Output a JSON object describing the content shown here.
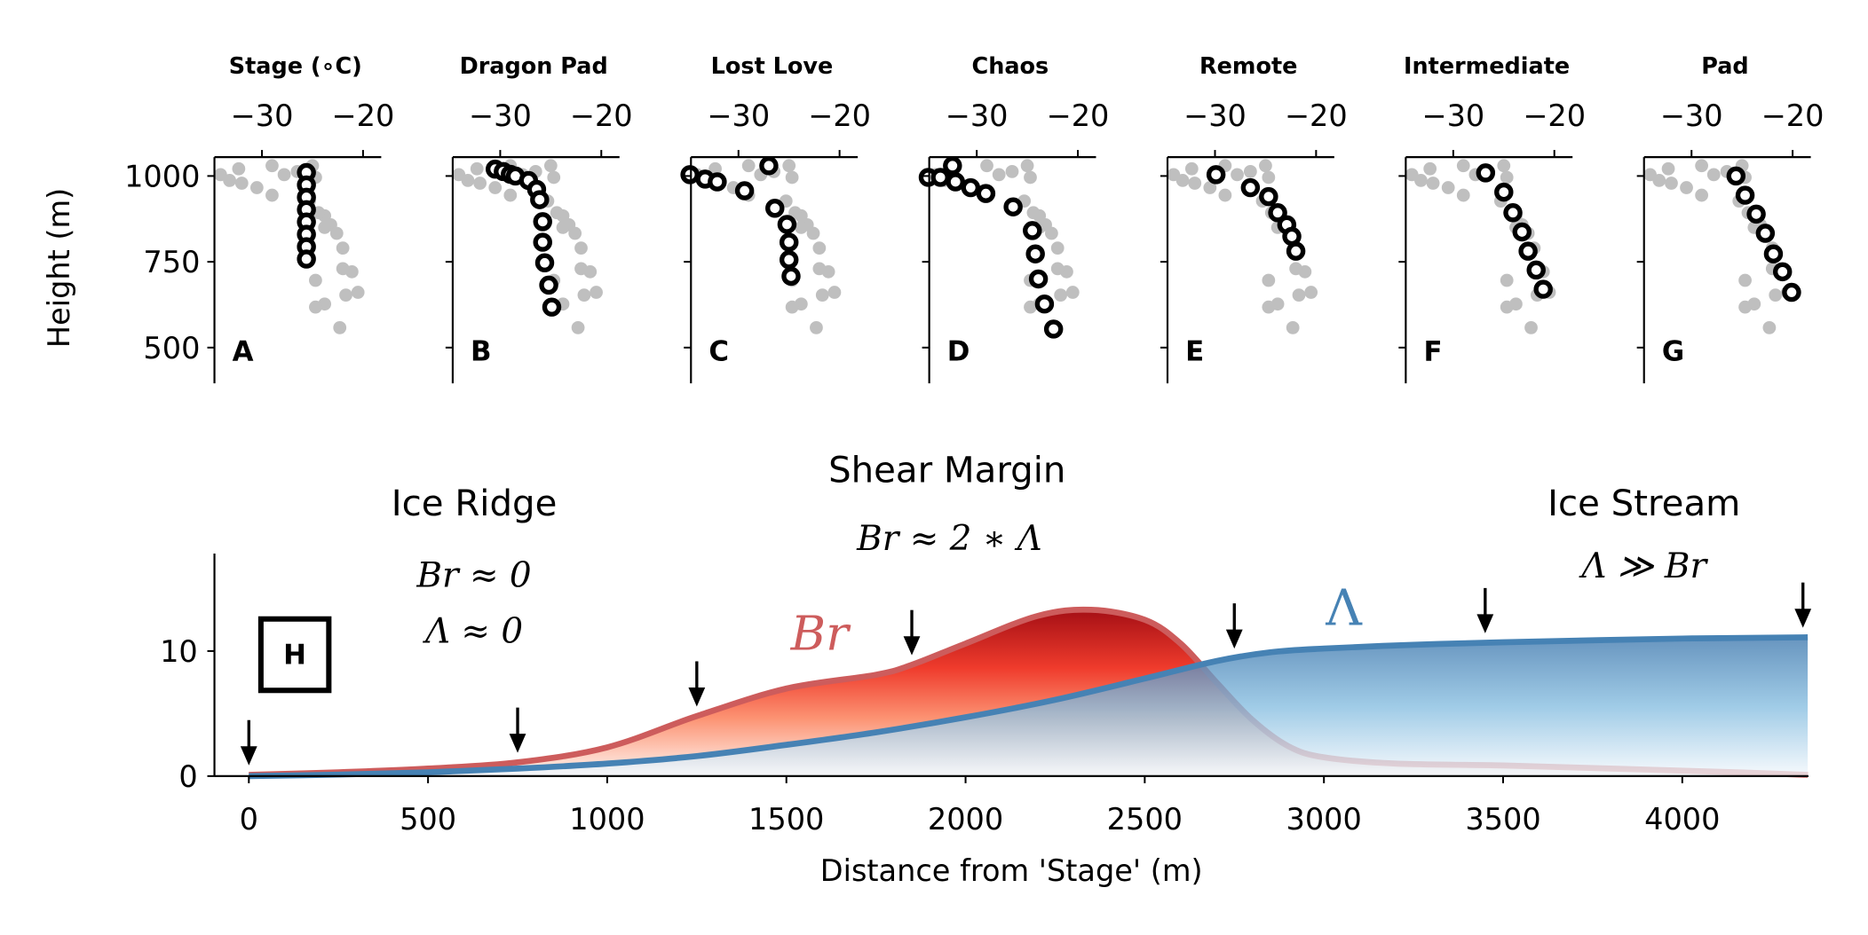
{
  "chart_data": [
    {
      "type": "scatter",
      "layout": "small-multiples",
      "panels": [
        {
          "title": "Stage (∘C)",
          "letter": "A",
          "points": [
            [
              -25.6,
              1010
            ],
            [
              -25.6,
              974
            ],
            [
              -25.6,
              938
            ],
            [
              -25.6,
              902
            ],
            [
              -25.6,
              866
            ],
            [
              -25.6,
              830
            ],
            [
              -25.6,
              794
            ],
            [
              -25.6,
              758
            ]
          ]
        },
        {
          "title": "Dragon Pad",
          "letter": "B",
          "points": [
            [
              -30.5,
              1020
            ],
            [
              -29.7,
              1013
            ],
            [
              -29,
              1005
            ],
            [
              -28.5,
              1000
            ],
            [
              -27.2,
              987
            ],
            [
              -26.4,
              961
            ],
            [
              -26.1,
              931
            ],
            [
              -25.8,
              867
            ],
            [
              -25.8,
              807
            ],
            [
              -25.6,
              747
            ],
            [
              -25.2,
              682
            ],
            [
              -24.9,
              618
            ]
          ]
        },
        {
          "title": "Lost Love",
          "letter": "C",
          "points": [
            [
              -34.8,
              1004
            ],
            [
              -33.3,
              991
            ],
            [
              -32.1,
              983
            ],
            [
              -29.4,
              957
            ],
            [
              -27.0,
              1030
            ],
            [
              -26.4,
              906
            ],
            [
              -25.2,
              859
            ],
            [
              -25.0,
              807
            ],
            [
              -25.0,
              756
            ],
            [
              -24.8,
              708
            ]
          ]
        },
        {
          "title": "Chaos",
          "letter": "D",
          "points": [
            [
              -34.8,
              996
            ],
            [
              -33.6,
              996
            ],
            [
              -32.4,
              1030
            ],
            [
              -32.1,
              983
            ],
            [
              -30.6,
              966
            ],
            [
              -29.1,
              949
            ],
            [
              -26.4,
              910
            ],
            [
              -24.5,
              841
            ],
            [
              -24.2,
              773
            ],
            [
              -23.9,
              700
            ],
            [
              -23.3,
              627
            ],
            [
              -22.4,
              554
            ]
          ]
        },
        {
          "title": "Remote",
          "letter": "E",
          "points": [
            [
              -29.9,
              1004
            ],
            [
              -26.5,
              966
            ],
            [
              -24.7,
              940
            ],
            [
              -23.8,
              893
            ],
            [
              -22.9,
              858
            ],
            [
              -22.4,
              824
            ],
            [
              -22.0,
              781
            ]
          ]
        },
        {
          "title": "Intermediate",
          "letter": "F",
          "points": [
            [
              -26.8,
              1009
            ],
            [
              -25.0,
              953
            ],
            [
              -24.1,
              893
            ],
            [
              -23.2,
              837
            ],
            [
              -22.6,
              781
            ],
            [
              -21.8,
              726
            ],
            [
              -21.1,
              670
            ]
          ]
        },
        {
          "title": "Pad",
          "letter": "G",
          "points": [
            [
              -25.6,
              1000
            ],
            [
              -24.7,
              944
            ],
            [
              -23.6,
              889
            ],
            [
              -22.7,
              833
            ],
            [
              -21.9,
              773
            ],
            [
              -21.0,
              721
            ],
            [
              -20.1,
              661
            ]
          ]
        }
      ],
      "background_points": [
        [
          -34.1,
          1004
        ],
        [
          -33.2,
          987
        ],
        [
          -32.3,
          1021
        ],
        [
          -32.0,
          979
        ],
        [
          -30.5,
          966
        ],
        [
          -29.0,
          1030
        ],
        [
          -29.0,
          944
        ],
        [
          -27.8,
          1004
        ],
        [
          -26.5,
          1013
        ],
        [
          -25.0,
          1030
        ],
        [
          -23.8,
          884
        ],
        [
          -23.2,
          858
        ],
        [
          -22.6,
          833
        ],
        [
          -22.0,
          790
        ],
        [
          -21.1,
          721
        ],
        [
          -22.0,
          730
        ],
        [
          -24.7,
          696
        ],
        [
          -20.5,
          661
        ],
        [
          -21.7,
          653
        ],
        [
          -23.8,
          627
        ],
        [
          -24.7,
          618
        ],
        [
          -22.3,
          558
        ],
        [
          -24.7,
          996
        ],
        [
          -25.3,
          927
        ],
        [
          -24.4,
          893
        ],
        [
          -23.8,
          850
        ]
      ],
      "xticks": [
        -30,
        -20
      ],
      "xtick_labels": [
        "−30",
        "−20"
      ],
      "yticks": [
        1000,
        750,
        500
      ],
      "ytick_labels": [
        "1000",
        "750",
        "500"
      ],
      "xlim": [
        -34.7,
        -18.2
      ],
      "ylim": [
        396,
        1055
      ],
      "ylabel": "Height (m)",
      "xaxis_position": "top",
      "colors": {
        "profile": "#000000",
        "background": "#bfbfbf"
      }
    },
    {
      "type": "area",
      "letter": "H",
      "xlabel": "Distance from 'Stage' (m)",
      "xlim": [
        -96,
        4352
      ],
      "ylim": [
        0,
        17.8
      ],
      "xticks": [
        0,
        500,
        1000,
        1500,
        2000,
        2500,
        3000,
        3500,
        4000
      ],
      "xtick_labels": [
        "0",
        "500",
        "1000",
        "1500",
        "2000",
        "2500",
        "3000",
        "3500",
        "4000"
      ],
      "yticks": [
        0,
        10
      ],
      "ytick_labels": [
        "0",
        "10"
      ],
      "series": [
        {
          "name": "Br",
          "color": "#cd5c5c",
          "x": [
            0,
            250,
            500,
            750,
            1000,
            1250,
            1500,
            1750,
            1850,
            2000,
            2200,
            2350,
            2500,
            2600,
            2700,
            2800,
            2900,
            3000,
            3200,
            3500,
            3800,
            4100,
            4350
          ],
          "y": [
            0.1,
            0.3,
            0.6,
            1.1,
            2.3,
            4.8,
            7.0,
            8.1,
            8.9,
            10.6,
            12.8,
            13.3,
            12.5,
            10.6,
            7.5,
            4.5,
            2.4,
            1.5,
            1.0,
            0.85,
            0.6,
            0.35,
            0.1
          ]
        },
        {
          "name": "Λ",
          "color": "#4682b4",
          "x": [
            0,
            250,
            500,
            750,
            1000,
            1250,
            1500,
            1750,
            2000,
            2250,
            2500,
            2700,
            2850,
            3000,
            3250,
            3500,
            4000,
            4350
          ],
          "y": [
            0,
            0.12,
            0.3,
            0.6,
            1.0,
            1.6,
            2.5,
            3.5,
            4.7,
            6.1,
            7.8,
            9.2,
            9.9,
            10.2,
            10.5,
            10.7,
            11.0,
            11.1
          ]
        }
      ],
      "arrows_at": [
        0,
        750,
        1250,
        1850,
        2750,
        3450,
        4350
      ],
      "annotations": {
        "ice_ridge": "Ice Ridge",
        "ice_ridge_br": "Br ≈ 0",
        "ice_ridge_lambda": "Λ ≈ 0",
        "shear_margin": "Shear Margin",
        "shear_margin_eq": "Br ≈ 2 ∗ Λ",
        "ice_stream": "Ice Stream",
        "ice_stream_eq": "Λ ≫ Br"
      }
    }
  ]
}
